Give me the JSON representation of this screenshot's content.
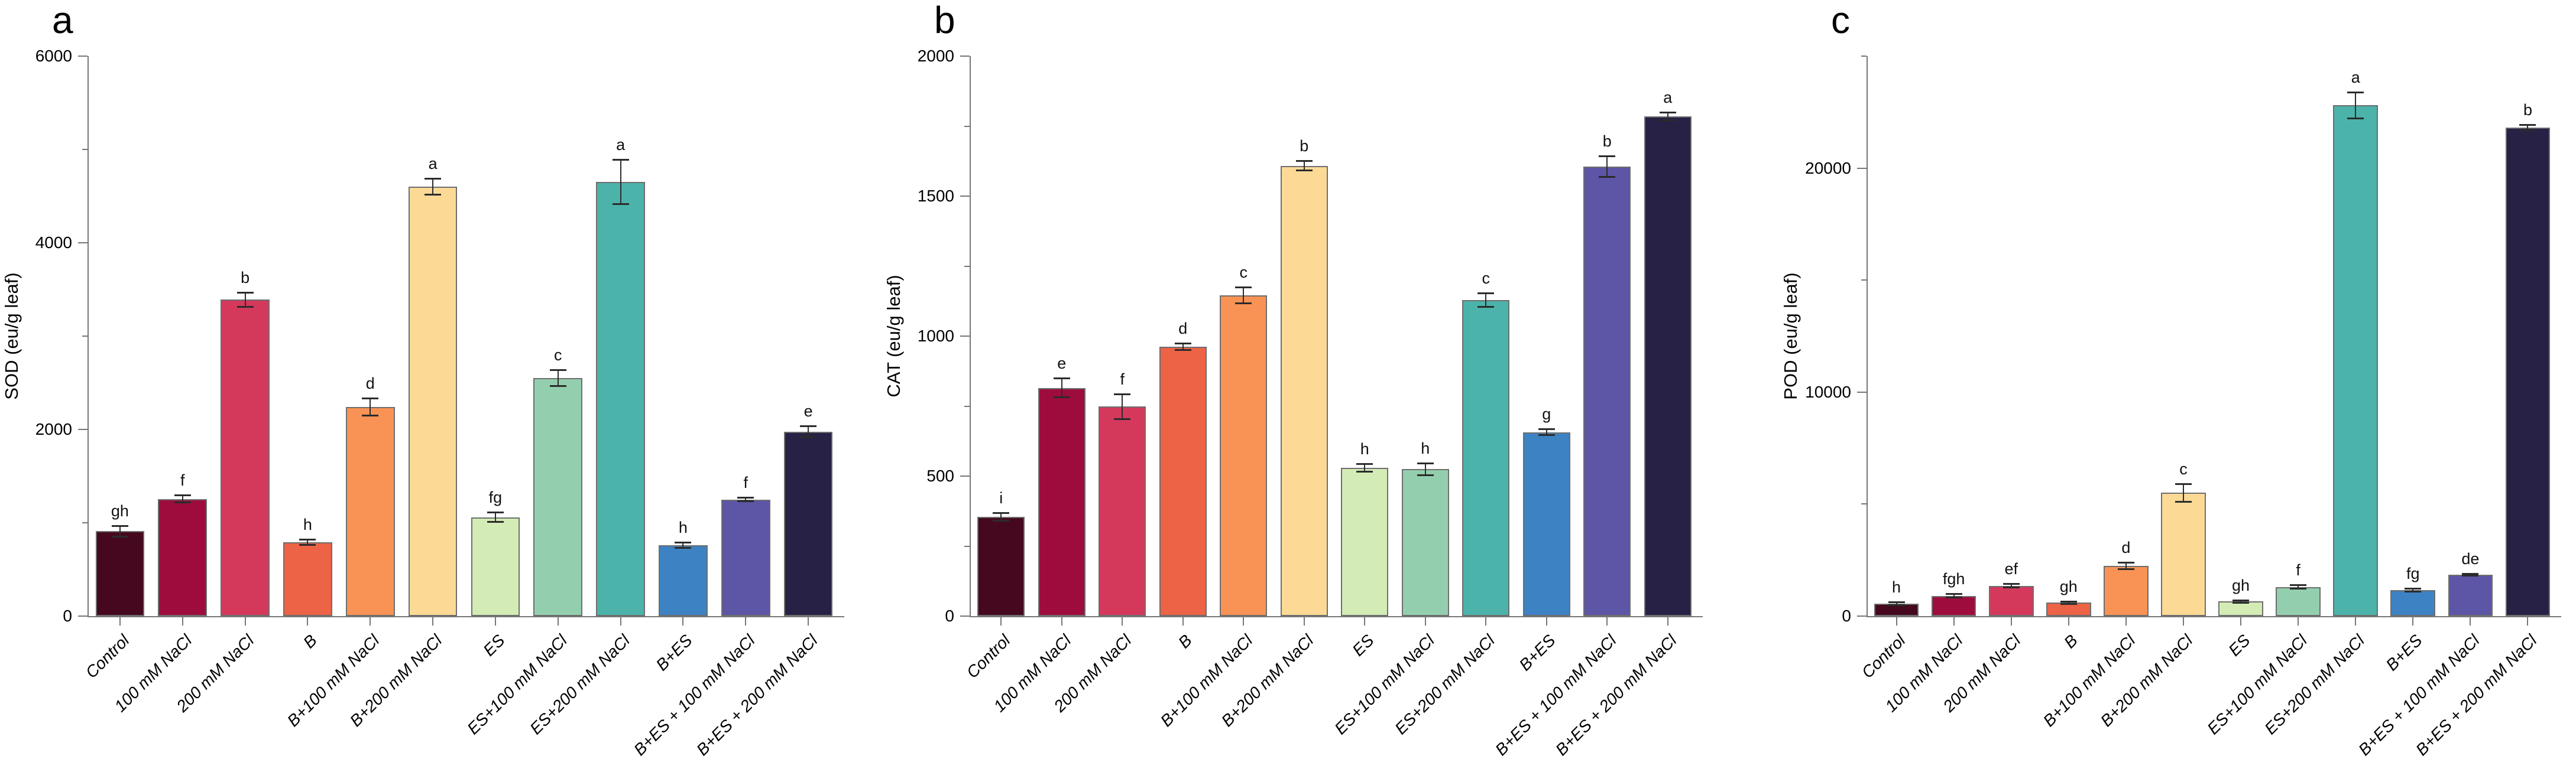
{
  "figure": {
    "background": "#ffffff",
    "description": "Three-panel bar chart of antioxidant enzyme activities under salt stress treatments"
  },
  "style": {
    "bar_colors": [
      "#45081f",
      "#9e0c3e",
      "#d4395c",
      "#ed6345",
      "#f99355",
      "#fcda96",
      "#d3ecb5",
      "#93cfae",
      "#4cb3ab",
      "#3d82c3",
      "#5d55a5",
      "#262145"
    ],
    "bar_border_color": "#6e6e6e",
    "error_bar_color": "#2b2b2b",
    "axis_color": "#767676",
    "text_color": "#000000"
  },
  "chart_data": [
    {
      "panel_label": "a",
      "type": "bar",
      "title": "",
      "xlabel": "",
      "ylabel": "SOD (eu/g leaf)",
      "ylim": [
        0,
        6000
      ],
      "yticks_major": [
        0,
        2000,
        4000,
        6000
      ],
      "yticks_minor": [
        1000,
        3000,
        5000
      ],
      "grid": false,
      "legend": "none",
      "categories": [
        "Control",
        "100 mM NaCl",
        "200 mM NaCl",
        "B",
        "B+100 mM NaCl",
        "B+200 mM NaCl",
        "ES",
        "ES+100 mM NaCl",
        "ES+200 mM NaCl",
        "B+ES",
        "B+ES + 100 mM NaCl",
        "B+ES + 200 mM NaCl"
      ],
      "values": [
        910,
        1255,
        3390,
        790,
        2240,
        4600,
        1060,
        2550,
        4650,
        760,
        1250,
        1975
      ],
      "errors": [
        60,
        40,
        80,
        30,
        95,
        90,
        55,
        90,
        240,
        30,
        25,
        60
      ],
      "sig_letters": [
        "gh",
        "f",
        "b",
        "h",
        "d",
        "a",
        "fg",
        "c",
        "a",
        "h",
        "f",
        "e"
      ]
    },
    {
      "panel_label": "b",
      "type": "bar",
      "title": "",
      "xlabel": "",
      "ylabel": "CAT (eu/g leaf)",
      "ylim": [
        0,
        2000
      ],
      "yticks_major": [
        0,
        500,
        1000,
        1500,
        2000
      ],
      "yticks_minor": [
        250,
        750,
        1250,
        1750
      ],
      "grid": false,
      "legend": "none",
      "categories": [
        "Control",
        "100 mM NaCl",
        "200 mM NaCl",
        "B",
        "B+100 mM NaCl",
        "B+200 mM NaCl",
        "ES",
        "ES+100 mM NaCl",
        "ES+200 mM NaCl",
        "B+ES",
        "B+ES + 100 mM NaCl",
        "B+ES + 200 mM NaCl"
      ],
      "values": [
        355,
        815,
        748,
        962,
        1145,
        1608,
        530,
        525,
        1128,
        657,
        1605,
        1785
      ],
      "errors": [
        15,
        35,
        45,
        12,
        30,
        18,
        15,
        22,
        25,
        12,
        38,
        15
      ],
      "sig_letters": [
        "i",
        "e",
        "f",
        "d",
        "c",
        "b",
        "h",
        "h",
        "c",
        "g",
        "b",
        "a"
      ]
    },
    {
      "panel_label": "c",
      "type": "bar",
      "title": "",
      "xlabel": "",
      "ylabel": "POD (eu/g leaf)",
      "ylim": [
        0,
        25000
      ],
      "yticks_major": [
        0,
        10000,
        20000
      ],
      "yticks_minor": [
        5000,
        15000,
        25000
      ],
      "grid": false,
      "legend": "none",
      "categories": [
        "Control",
        "100 mM NaCl",
        "200 mM NaCl",
        "B",
        "B+100 mM NaCl",
        "B+200 mM NaCl",
        "ES",
        "ES+100 mM NaCl",
        "ES+200 mM NaCl",
        "B+ES",
        "B+ES + 100 mM NaCl",
        "B+ES + 200 mM NaCl"
      ],
      "values": [
        550,
        900,
        1350,
        600,
        2250,
        5500,
        650,
        1300,
        22800,
        1150,
        1850,
        21800
      ],
      "errors": [
        70,
        90,
        90,
        60,
        160,
        420,
        70,
        90,
        600,
        80,
        60,
        130
      ],
      "sig_letters": [
        "h",
        "fgh",
        "ef",
        "gh",
        "d",
        "c",
        "gh",
        "f",
        "a",
        "fg",
        "de",
        "b"
      ]
    }
  ]
}
